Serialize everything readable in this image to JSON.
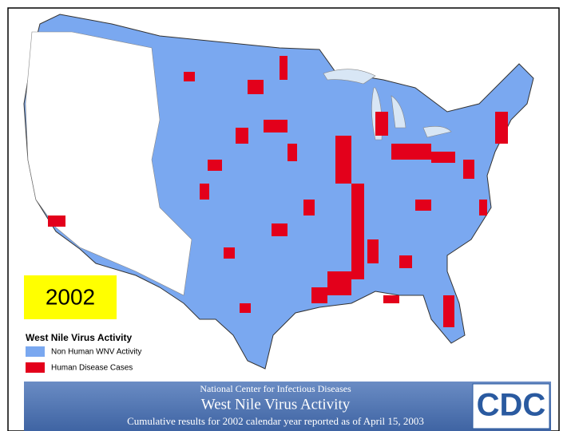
{
  "year_label": "2002",
  "legend": {
    "title": "West Nile Virus Activity",
    "items": [
      {
        "label": "Non Human WNV Activity",
        "color": "#7aa8f0"
      },
      {
        "label": "Human Disease Cases",
        "color": "#e3001b"
      }
    ]
  },
  "footer": {
    "organization": "National Center for Infectious Diseases",
    "title": "West Nile Virus Activity",
    "subtitle": "Cumulative results for 2002 calendar year reported as of April 15, 2003",
    "logo": "CDC"
  }
}
